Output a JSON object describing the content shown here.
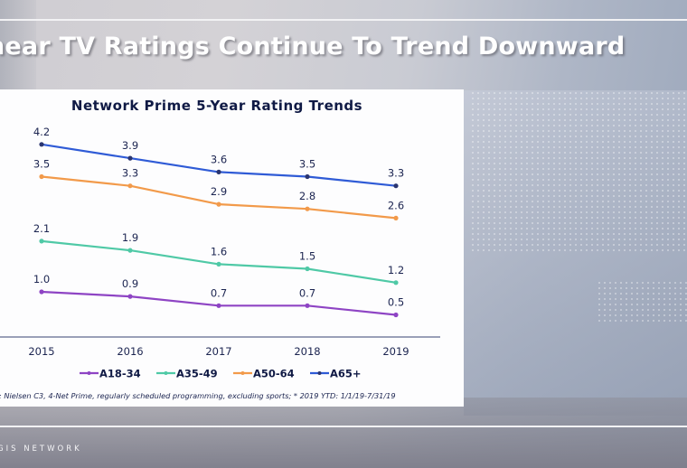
{
  "slide": {
    "title": "near TV Ratings Continue To Trend Downward",
    "brand": "GIS NETWORK",
    "footnote": "e: Nielsen C3, 4-Net Prime, regularly scheduled programming, excluding sports; * 2019 YTD: 1/1/19-7/31/19"
  },
  "chart_data": {
    "type": "line",
    "title": "Network Prime 5-Year Rating Trends",
    "xlabel": "",
    "ylabel": "",
    "x": [
      "2015",
      "2016",
      "2017",
      "2018",
      "2019"
    ],
    "ylim": [
      0,
      4.5
    ],
    "grid": false,
    "legend_position": "bottom",
    "series": [
      {
        "name": "A18-34",
        "color": "#8e44c4",
        "values": [
          1.0,
          0.9,
          0.7,
          0.7,
          0.5
        ],
        "labels": [
          "1.0",
          "0.9",
          "0.7",
          "0.7",
          "0.5"
        ]
      },
      {
        "name": "A35-49",
        "color": "#4fc9a6",
        "values": [
          2.1,
          1.9,
          1.6,
          1.5,
          1.2
        ],
        "labels": [
          "2.1",
          "1.9",
          "1.6",
          "1.5",
          "1.2"
        ]
      },
      {
        "name": "A50-64",
        "color": "#f29a4a",
        "values": [
          3.5,
          3.3,
          2.9,
          2.8,
          2.6
        ],
        "labels": [
          "3.5",
          "3.3",
          "2.9",
          "2.8",
          "2.6"
        ]
      },
      {
        "name": "A65+",
        "color": "#2f5bd6",
        "values": [
          4.2,
          3.9,
          3.6,
          3.5,
          3.3
        ],
        "labels": [
          "4.2",
          "3.9",
          "3.6",
          "3.5",
          "3.3"
        ]
      }
    ],
    "marker_color": "#2a3570",
    "axis_color": "#9aa0b8",
    "label_color": "#1b2450"
  }
}
